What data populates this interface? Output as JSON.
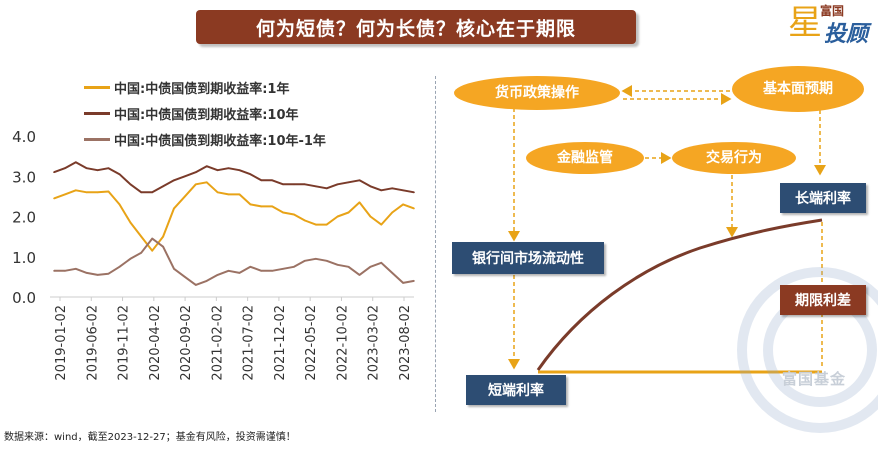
{
  "title": "何为短债？何为长债？核心在于期限",
  "logo": {
    "small": "富国",
    "big": "投顾",
    "star": "星"
  },
  "chart_data": {
    "type": "line",
    "title": "",
    "xlabel": "",
    "ylabel": "",
    "ylim": [
      0.0,
      4.0
    ],
    "yticks": [
      "0.0",
      "1.0",
      "2.0",
      "3.0",
      "4.0"
    ],
    "x_tick_labels": [
      "2019-01-02",
      "2019-06-02",
      "2019-11-02",
      "2020-04-02",
      "2020-09-02",
      "2021-02-02",
      "2021-07-02",
      "2021-12-02",
      "2022-05-02",
      "2022-10-02",
      "2023-03-02",
      "2023-08-02"
    ],
    "x": [
      "2019-01",
      "2019-03",
      "2019-05",
      "2019-07",
      "2019-09",
      "2019-11",
      "2020-01",
      "2020-02",
      "2020-03",
      "2020-04",
      "2020-05",
      "2020-06",
      "2020-07",
      "2020-09",
      "2020-11",
      "2021-01",
      "2021-03",
      "2021-05",
      "2021-07",
      "2021-09",
      "2021-11",
      "2022-01",
      "2022-03",
      "2022-05",
      "2022-07",
      "2022-09",
      "2022-11",
      "2023-01",
      "2023-03",
      "2023-05",
      "2023-07",
      "2023-09",
      "2023-11",
      "2023-12"
    ],
    "series": [
      {
        "name": "中国:中债国债到期收益率:1年",
        "color": "#e8a317",
        "values": [
          2.45,
          2.55,
          2.65,
          2.6,
          2.6,
          2.62,
          2.3,
          1.85,
          1.5,
          1.15,
          1.5,
          2.2,
          2.5,
          2.8,
          2.85,
          2.6,
          2.55,
          2.55,
          2.3,
          2.25,
          2.25,
          2.1,
          2.05,
          1.9,
          1.8,
          1.8,
          2.0,
          2.1,
          2.35,
          2.0,
          1.8,
          2.1,
          2.3,
          2.2
        ]
      },
      {
        "name": "中国:中债国债到期收益率:10年",
        "color": "#7a3b2a",
        "values": [
          3.1,
          3.2,
          3.35,
          3.2,
          3.15,
          3.2,
          3.05,
          2.8,
          2.6,
          2.6,
          2.75,
          2.9,
          3.0,
          3.1,
          3.25,
          3.15,
          3.2,
          3.15,
          3.05,
          2.9,
          2.9,
          2.8,
          2.8,
          2.8,
          2.75,
          2.7,
          2.8,
          2.85,
          2.9,
          2.75,
          2.65,
          2.7,
          2.65,
          2.6
        ]
      },
      {
        "name": "中国:中债国债到期收益率:10年-1年",
        "color": "#9b7264",
        "values": [
          0.65,
          0.65,
          0.7,
          0.6,
          0.55,
          0.58,
          0.75,
          0.95,
          1.1,
          1.45,
          1.25,
          0.7,
          0.5,
          0.3,
          0.4,
          0.55,
          0.65,
          0.6,
          0.75,
          0.65,
          0.65,
          0.7,
          0.75,
          0.9,
          0.95,
          0.9,
          0.8,
          0.75,
          0.55,
          0.75,
          0.85,
          0.6,
          0.35,
          0.4
        ]
      }
    ]
  },
  "diagram": {
    "nodes": {
      "monetary_policy": "货币政策操作",
      "fundamentals": "基本面预期",
      "financial_regulation": "金融监管",
      "trading_behavior": "交易行为",
      "long_rate": "长端利率",
      "interbank_liquidity": "银行间市场流动性",
      "term_spread": "期限利差",
      "short_rate": "短端利率"
    },
    "watermark": "富国基金"
  },
  "source": "数据来源：wind，截至2023-12-27；基金有风险，投资需谨慎！"
}
